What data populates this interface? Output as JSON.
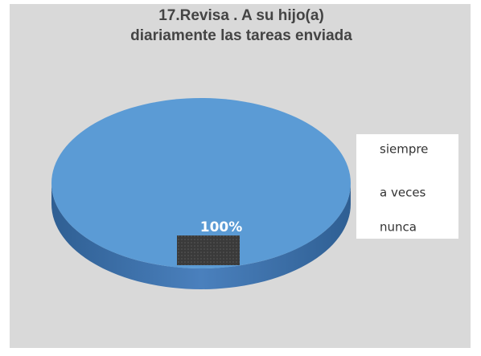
{
  "chart_data": {
    "type": "pie",
    "title": [
      "17.Revisa . A su hijo(a)",
      "diariamente las tareas enviada"
    ],
    "categories": [
      "siempre",
      "a veces",
      "nunca"
    ],
    "values": [
      100,
      0,
      0
    ],
    "value_labels": [
      "100%",
      null,
      null
    ],
    "colors": [
      "#5b9bd5",
      "#ed7d31",
      "#a5a5a5"
    ]
  }
}
